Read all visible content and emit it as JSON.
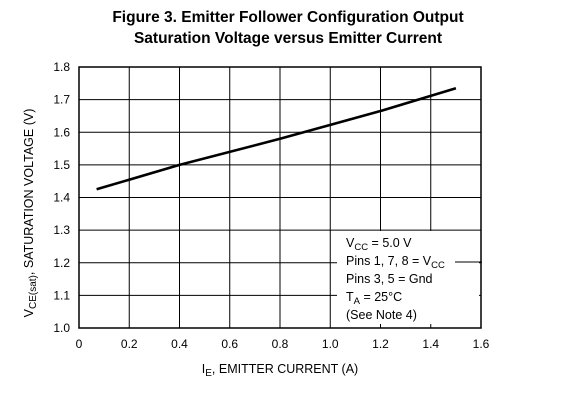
{
  "chart_data": {
    "type": "line",
    "title_line1": "Figure 3. Emitter Follower Configuration Output",
    "title_line2": "Saturation Voltage versus Emitter Current",
    "xlabel": {
      "main": "I",
      "sub": "E",
      "rest": ", EMITTER CURRENT (A)"
    },
    "ylabel": {
      "main": "V",
      "sub": "CE(sat)",
      "rest": ", SATURATION VOLTAGE (V)"
    },
    "xlim": [
      0,
      1.6
    ],
    "ylim": [
      1.0,
      1.8
    ],
    "x_ticks": [
      "0",
      "0.2",
      "0.4",
      "0.6",
      "0.8",
      "1.0",
      "1.2",
      "1.4",
      "1.6"
    ],
    "y_ticks": [
      "1.0",
      "1.1",
      "1.2",
      "1.3",
      "1.4",
      "1.5",
      "1.6",
      "1.7",
      "1.8"
    ],
    "grid": true,
    "series": [
      {
        "x": [
          0.07,
          0.4,
          0.8,
          1.2,
          1.5
        ],
        "y": [
          1.425,
          1.5,
          1.58,
          1.665,
          1.735
        ],
        "color": "#000000"
      }
    ],
    "annotations": {
      "vcc": {
        "main": "V",
        "sub": "CC",
        "rest": " = 5.0 V"
      },
      "pins1": {
        "main": "Pins 1, 7, 8 = V",
        "sub": "CC"
      },
      "pins2": "Pins 3, 5 = Gnd",
      "ta": {
        "main": "T",
        "sub": "A",
        "rest": " = 25°C"
      },
      "note": "(See Note 4)"
    }
  }
}
